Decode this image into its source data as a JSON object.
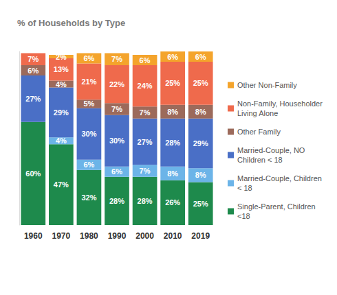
{
  "chart_data": {
    "type": "bar",
    "title": "% of Households by Type",
    "categories": [
      "1960",
      "1970",
      "1980",
      "1990",
      "2000",
      "2010",
      "2019"
    ],
    "stacked": true,
    "data_labels": true,
    "tick_labels": "x",
    "grid": false,
    "legend": "right",
    "ylim": [
      0,
      101
    ],
    "yticks": [],
    "series": [
      {
        "name": "Single-Parent, Children <18",
        "color": "#1e8a4c",
        "values": [
          60,
          47,
          32,
          28,
          28,
          26,
          25
        ],
        "value_labels": [
          "60%",
          "47%",
          "32%",
          "28%",
          "28%",
          "26%",
          "25%"
        ]
      },
      {
        "name": "Married-Couple, Children < 18",
        "color": "#6cb4e8",
        "values": [
          0,
          4,
          6,
          6,
          7,
          8,
          8
        ],
        "value_labels": [
          null,
          "4%",
          "6%",
          "6%",
          "7%",
          "8%",
          "8%"
        ]
      },
      {
        "name": "Married-Couple, NO Children < 18",
        "color": "#4a6fc6",
        "values": [
          27,
          29,
          30,
          30,
          27,
          28,
          29
        ],
        "value_labels": [
          "27%",
          "29%",
          "30%",
          "30%",
          "27%",
          "28%",
          "29%"
        ]
      },
      {
        "name": "Other Family",
        "color": "#9c6a5b",
        "values": [
          6,
          4,
          5,
          7,
          7,
          8,
          8
        ],
        "value_labels": [
          "6%",
          "4%",
          "5%",
          "7%",
          "7%",
          "8%",
          "8%"
        ]
      },
      {
        "name": "Non-Family, Householder Living Alone",
        "color": "#ef6a4c",
        "values": [
          7,
          13,
          21,
          22,
          24,
          25,
          25
        ],
        "value_labels": [
          "7%",
          "13%",
          "21%",
          "22%",
          "24%",
          "25%",
          "25%"
        ]
      },
      {
        "name": "Other Non-Family",
        "color": "#f4a42c",
        "values": [
          0,
          2,
          6,
          7,
          6,
          6,
          6
        ],
        "value_labels": [
          null,
          "2%",
          "6%",
          "7%",
          "6%",
          "6%",
          "6%"
        ]
      }
    ]
  }
}
